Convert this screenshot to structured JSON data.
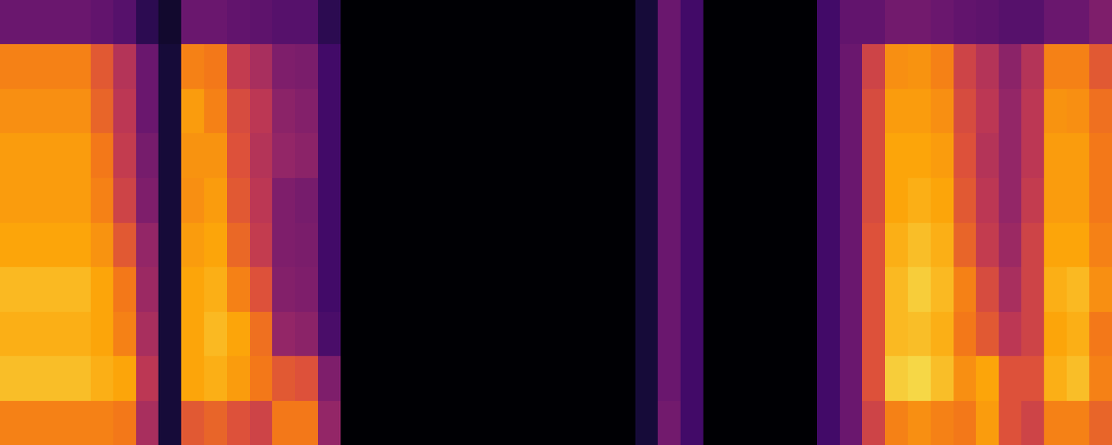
{
  "chart_data": {
    "type": "heatmap",
    "tick_labels": false,
    "zlim": [
      0,
      1
    ],
    "cells": [
      [
        0.72,
        0.85,
        0.82,
        0.84,
        0.8,
        0.78,
        0.78,
        0.75,
        0.72,
        0.3
      ],
      [
        0.72,
        0.85,
        0.82,
        0.84,
        0.8,
        0.78,
        0.78,
        0.75,
        0.72,
        0.3
      ],
      [
        0.72,
        0.85,
        0.82,
        0.84,
        0.8,
        0.78,
        0.78,
        0.75,
        0.72,
        0.3
      ],
      [
        0.72,
        0.85,
        0.82,
        0.84,
        0.8,
        0.78,
        0.78,
        0.75,
        0.72,
        0.3
      ],
      [
        0.72,
        0.82,
        0.8,
        0.8,
        0.76,
        0.72,
        0.7,
        0.65,
        0.62,
        0.28
      ],
      [
        0.7,
        0.8,
        0.72,
        0.7,
        0.62,
        0.55,
        0.52,
        0.5,
        0.48,
        0.25
      ],
      [
        0.45,
        0.5,
        0.45,
        0.42,
        0.4,
        0.35,
        0.33,
        0.3,
        0.3,
        0.15
      ],
      [
        0.1,
        0.1,
        0.1,
        0.1,
        0.1,
        0.1,
        0.1,
        0.1,
        0.1,
        0.08
      ],
      [
        0.62,
        0.8,
        0.8,
        0.8,
        0.78,
        0.75,
        0.76,
        0.78,
        0.72,
        0.3
      ],
      [
        0.65,
        0.82,
        0.84,
        0.82,
        0.8,
        0.78,
        0.76,
        0.72,
        0.7,
        0.3
      ],
      [
        0.6,
        0.78,
        0.8,
        0.72,
        0.66,
        0.62,
        0.6,
        0.58,
        0.52,
        0.28
      ],
      [
        0.55,
        0.7,
        0.68,
        0.6,
        0.52,
        0.5,
        0.48,
        0.5,
        0.45,
        0.27
      ],
      [
        0.7,
        0.62,
        0.4,
        0.36,
        0.35,
        0.35,
        0.4,
        0.38,
        0.35,
        0.25
      ],
      [
        0.7,
        0.6,
        0.38,
        0.35,
        0.34,
        0.33,
        0.38,
        0.36,
        0.34,
        0.25
      ],
      [
        0.4,
        0.35,
        0.22,
        0.2,
        0.2,
        0.2,
        0.2,
        0.2,
        0.2,
        0.15
      ],
      [
        0,
        0,
        0,
        0,
        0,
        0,
        0,
        0,
        0,
        0
      ],
      [
        0,
        0,
        0,
        0,
        0,
        0,
        0,
        0,
        0,
        0
      ],
      [
        0,
        0,
        0,
        0,
        0,
        0,
        0,
        0,
        0,
        0
      ],
      [
        0,
        0,
        0,
        0,
        0,
        0,
        0,
        0,
        0,
        0
      ],
      [
        0,
        0,
        0,
        0,
        0,
        0,
        0,
        0,
        0,
        0
      ],
      [
        0,
        0,
        0,
        0,
        0,
        0,
        0,
        0,
        0,
        0
      ],
      [
        0,
        0,
        0,
        0,
        0,
        0,
        0,
        0,
        0,
        0
      ],
      [
        0,
        0,
        0,
        0,
        0,
        0,
        0,
        0,
        0,
        0
      ],
      [
        0,
        0,
        0,
        0,
        0,
        0,
        0,
        0,
        0,
        0
      ],
      [
        0,
        0,
        0,
        0,
        0,
        0,
        0,
        0,
        0,
        0
      ],
      [
        0,
        0,
        0,
        0,
        0,
        0,
        0,
        0,
        0,
        0
      ],
      [
        0,
        0,
        0,
        0,
        0,
        0,
        0,
        0,
        0,
        0
      ],
      [
        0,
        0,
        0,
        0,
        0,
        0,
        0,
        0,
        0,
        0
      ],
      [
        0.1,
        0.1,
        0.1,
        0.1,
        0.1,
        0.1,
        0.1,
        0.1,
        0.1,
        0.1
      ],
      [
        0.32,
        0.3,
        0.3,
        0.3,
        0.3,
        0.3,
        0.3,
        0.3,
        0.3,
        0.3
      ],
      [
        0.2,
        0.2,
        0.2,
        0.2,
        0.2,
        0.2,
        0.2,
        0.2,
        0.2,
        0.2
      ],
      [
        0,
        0,
        0,
        0,
        0,
        0,
        0,
        0,
        0,
        0
      ],
      [
        0,
        0,
        0,
        0,
        0,
        0,
        0,
        0,
        0,
        0
      ],
      [
        0,
        0,
        0,
        0,
        0,
        0,
        0,
        0,
        0,
        0
      ],
      [
        0,
        0,
        0,
        0,
        0,
        0,
        0,
        0,
        0,
        0
      ],
      [
        0,
        0,
        0,
        0,
        0,
        0,
        0,
        0,
        0,
        0
      ],
      [
        0.2,
        0.2,
        0.2,
        0.2,
        0.2,
        0.2,
        0.2,
        0.2,
        0.2,
        0.2
      ],
      [
        0.3,
        0.3,
        0.3,
        0.3,
        0.3,
        0.3,
        0.3,
        0.3,
        0.3,
        0.28
      ],
      [
        0.55,
        0.6,
        0.6,
        0.6,
        0.6,
        0.58,
        0.58,
        0.58,
        0.55,
        0.28
      ],
      [
        0.72,
        0.88,
        0.84,
        0.84,
        0.82,
        0.8,
        0.8,
        0.78,
        0.75,
        0.32
      ],
      [
        0.75,
        0.9,
        0.85,
        0.88,
        0.85,
        0.82,
        0.8,
        0.78,
        0.76,
        0.32
      ],
      [
        0.72,
        0.85,
        0.82,
        0.84,
        0.82,
        0.8,
        0.78,
        0.75,
        0.72,
        0.3
      ],
      [
        0.7,
        0.75,
        0.7,
        0.72,
        0.65,
        0.62,
        0.6,
        0.58,
        0.55,
        0.28
      ],
      [
        0.78,
        0.8,
        0.62,
        0.58,
        0.52,
        0.5,
        0.48,
        0.5,
        0.48,
        0.27
      ],
      [
        0.6,
        0.6,
        0.5,
        0.45,
        0.42,
        0.4,
        0.4,
        0.4,
        0.38,
        0.25
      ],
      [
        0.55,
        0.6,
        0.55,
        0.55,
        0.55,
        0.52,
        0.5,
        0.5,
        0.48,
        0.25
      ],
      [
        0.72,
        0.82,
        0.8,
        0.82,
        0.8,
        0.78,
        0.78,
        0.76,
        0.72,
        0.3
      ],
      [
        0.72,
        0.85,
        0.82,
        0.84,
        0.8,
        0.78,
        0.78,
        0.75,
        0.72,
        0.3
      ],
      [
        0.65,
        0.72,
        0.7,
        0.75,
        0.72,
        0.7,
        0.7,
        0.68,
        0.62,
        0.35
      ]
    ]
  }
}
